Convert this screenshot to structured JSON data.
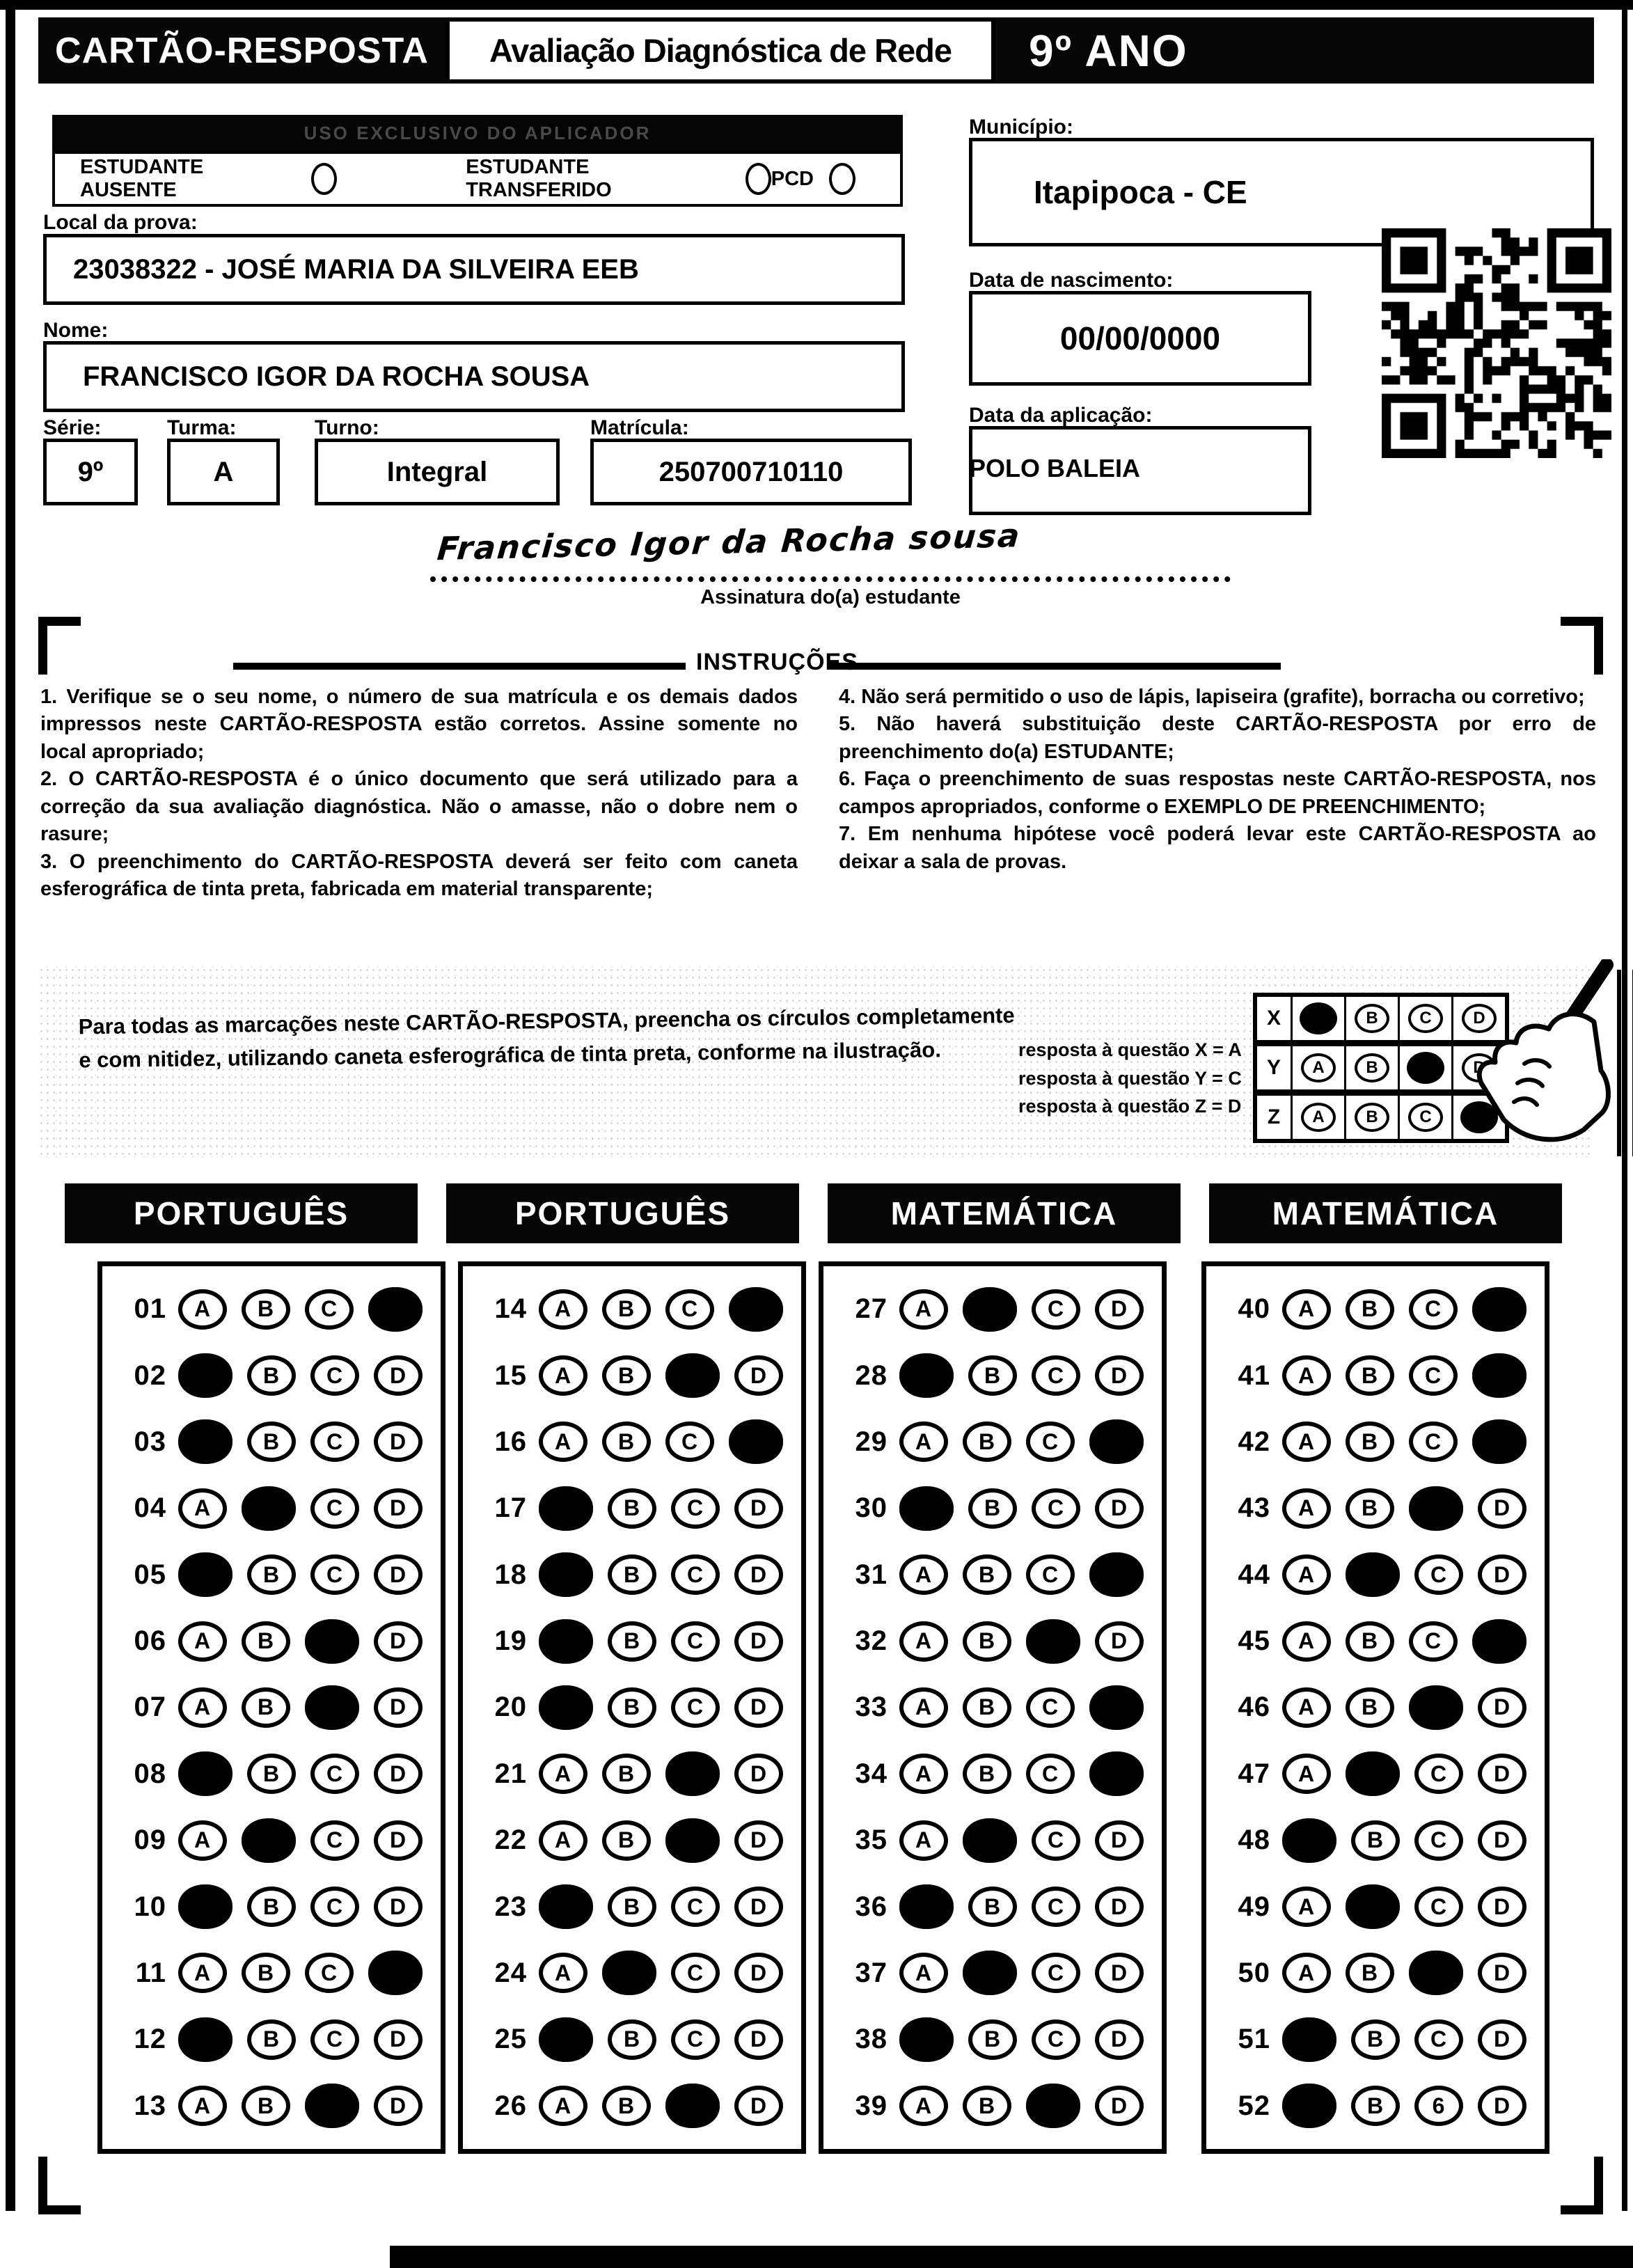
{
  "header": {
    "card_title": "CARTÃO-RESPOSTA",
    "exam_title": "Avaliação Diagnóstica de Rede",
    "grade": "9º ANO"
  },
  "applicator_bar": "USO EXCLUSIVO DO APLICADOR",
  "status_options": [
    {
      "label": "ESTUDANTE AUSENTE"
    },
    {
      "label": "ESTUDANTE TRANSFERIDO"
    },
    {
      "label": "PCD"
    }
  ],
  "fields": {
    "local_label": "Local da prova:",
    "local_value": "23038322 - JOSÉ MARIA DA SILVEIRA EEB",
    "nome_label": "Nome:",
    "nome_value": "FRANCISCO IGOR DA ROCHA SOUSA",
    "serie_label": "Série:",
    "serie_value": "9º",
    "turma_label": "Turma:",
    "turma_value": "A",
    "turno_label": "Turno:",
    "turno_value": "Integral",
    "matricula_label": "Matrícula:",
    "matricula_value": "250700710110",
    "municipio_label": "Município:",
    "municipio_value": "Itapipoca - CE",
    "nascimento_label": "Data de nascimento:",
    "nascimento_value": "00/00/0000",
    "aplicacao_label": "Data da aplicação:",
    "aplicacao_value": "",
    "polo": "POLO BALEIA"
  },
  "signature": {
    "value": "Francisco Igor da Rocha sousa",
    "label": "Assinatura do(a) estudante"
  },
  "instructions": {
    "title": "INSTRUÇÕES",
    "left": [
      "1. Verifique se o seu nome, o número de sua matrícula e os demais dados impressos neste CARTÃO-RESPOSTA estão corretos. Assine somente no local apropriado;",
      "2. O CARTÃO-RESPOSTA é o único documento que será utilizado para a correção da sua avaliação diagnóstica. Não o amasse, não o dobre nem o rasure;",
      "3. O preenchimento do CARTÃO-RESPOSTA deverá ser feito com caneta esferográfica de tinta preta, fabricada em material transparente;"
    ],
    "right": [
      "4. Não será permitido o uso de lápis, lapiseira (grafite), borracha ou corretivo;",
      "5. Não haverá substituição deste CARTÃO-RESPOSTA por erro de preenchimento do(a) ESTUDANTE;",
      "6. Faça o preenchimento de suas respostas neste CARTÃO-RESPOSTA, nos campos apropriados, conforme o EXEMPLO DE PREENCHIMENTO;",
      "7. Em nenhuma hipótese você poderá levar este CARTÃO-RESPOSTA ao deixar a sala de provas."
    ]
  },
  "example": {
    "note": "Para todas as marcações neste CARTÃO-RESPOSTA, preencha os círculos completamente e com nitidez, utilizando caneta esferográfica de tinta preta, conforme na ilustração.",
    "legend": [
      "resposta à questão X = A",
      "resposta à questão Y = C",
      "resposta à questão Z = D"
    ],
    "grid": [
      {
        "label": "X",
        "answer": "A"
      },
      {
        "label": "Y",
        "answer": "C"
      },
      {
        "label": "Z",
        "answer": "D"
      }
    ],
    "options": [
      "A",
      "B",
      "C",
      "D"
    ]
  },
  "answers": {
    "options": [
      "A",
      "B",
      "C",
      "D"
    ],
    "glyph_overrides": {
      "52": {
        "C": "6"
      }
    },
    "columns": [
      {
        "subject": "PORTUGUÊS",
        "questions": [
          {
            "n": "01",
            "a": "D"
          },
          {
            "n": "02",
            "a": "A"
          },
          {
            "n": "03",
            "a": "A"
          },
          {
            "n": "04",
            "a": "B"
          },
          {
            "n": "05",
            "a": "A"
          },
          {
            "n": "06",
            "a": "C"
          },
          {
            "n": "07",
            "a": "C"
          },
          {
            "n": "08",
            "a": "A"
          },
          {
            "n": "09",
            "a": "B"
          },
          {
            "n": "10",
            "a": "A"
          },
          {
            "n": "11",
            "a": "D"
          },
          {
            "n": "12",
            "a": "A"
          },
          {
            "n": "13",
            "a": "C"
          }
        ]
      },
      {
        "subject": "PORTUGUÊS",
        "questions": [
          {
            "n": "14",
            "a": "D"
          },
          {
            "n": "15",
            "a": "C"
          },
          {
            "n": "16",
            "a": "D"
          },
          {
            "n": "17",
            "a": "A"
          },
          {
            "n": "18",
            "a": "A"
          },
          {
            "n": "19",
            "a": "A"
          },
          {
            "n": "20",
            "a": "A"
          },
          {
            "n": "21",
            "a": "C"
          },
          {
            "n": "22",
            "a": "C"
          },
          {
            "n": "23",
            "a": "A"
          },
          {
            "n": "24",
            "a": "B"
          },
          {
            "n": "25",
            "a": "A"
          },
          {
            "n": "26",
            "a": "C"
          }
        ]
      },
      {
        "subject": "MATEMÁTICA",
        "questions": [
          {
            "n": "27",
            "a": "B"
          },
          {
            "n": "28",
            "a": "A"
          },
          {
            "n": "29",
            "a": "D"
          },
          {
            "n": "30",
            "a": "A"
          },
          {
            "n": "31",
            "a": "D"
          },
          {
            "n": "32",
            "a": "C"
          },
          {
            "n": "33",
            "a": "D"
          },
          {
            "n": "34",
            "a": "D"
          },
          {
            "n": "35",
            "a": "B"
          },
          {
            "n": "36",
            "a": "A"
          },
          {
            "n": "37",
            "a": "B"
          },
          {
            "n": "38",
            "a": "A"
          },
          {
            "n": "39",
            "a": "C"
          }
        ]
      },
      {
        "subject": "MATEMÁTICA",
        "questions": [
          {
            "n": "40",
            "a": "D"
          },
          {
            "n": "41",
            "a": "D"
          },
          {
            "n": "42",
            "a": "D"
          },
          {
            "n": "43",
            "a": "C"
          },
          {
            "n": "44",
            "a": "B"
          },
          {
            "n": "45",
            "a": "D"
          },
          {
            "n": "46",
            "a": "C"
          },
          {
            "n": "47",
            "a": "B"
          },
          {
            "n": "48",
            "a": "A"
          },
          {
            "n": "49",
            "a": "B"
          },
          {
            "n": "50",
            "a": "C"
          },
          {
            "n": "51",
            "a": "A"
          },
          {
            "n": "52",
            "a": "A"
          }
        ]
      }
    ]
  },
  "colors": {
    "ink": "#000000",
    "paper": "#ffffff"
  }
}
